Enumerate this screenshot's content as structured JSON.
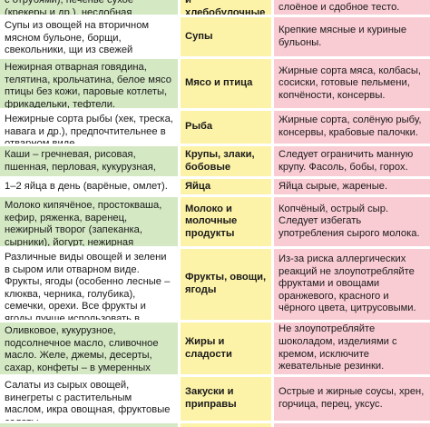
{
  "rows": [
    {
      "allowed": "с отрубями), печенье сухое (крекеры и др.), несдобная выпечка.",
      "category": "и хлебобулочные изделия",
      "restricted": "слоёное и сдобное тесто."
    },
    {
      "allowed": "Супы из овощей на вторичном мясном бульоне, борщи, свекольники, щи из свежей капусты.",
      "category": "Супы",
      "restricted": "Крепкие мясные и куриные бульоны."
    },
    {
      "allowed": "Нежирная отварная говядина, телятина, крольчатина, белое мясо птицы без кожи, паровые котлеты, фрикадельки, тефтели.",
      "category": "Мясо и птица",
      "restricted": "Жирные сорта мяса, колбасы, сосиски, готовые пельмени, копчёности, консервы."
    },
    {
      "allowed": "Нежирные сорта рыбы (хек, треска, навага и др.), предпочтительнее в отварном виде.",
      "category": "Рыба",
      "restricted": "Жирные сорта, солёную рыбу, консервы, крабовые палочки."
    },
    {
      "allowed": "Каши – гречневая, рисовая, пшенная, перловая, кукурузная, пшеничная, овсяная.",
      "category": "Крупы, злаки, бобовые",
      "restricted": "Следует ограничить манную крупу. Фасоль, бобы, горох."
    },
    {
      "allowed": "1–2 яйца в день (варёные, омлет).",
      "category": "Яйца",
      "restricted": "Яйца сырые, жареные."
    },
    {
      "allowed": "Молоко кипячёное, простокваша, кефир, ряженка, варенец, нежирный творог (запеканка, сырники), йогурт, нежирная сметана, сыр.",
      "category": "Молоко и молочные продукты",
      "restricted": "Копчёный, острый сыр. Следует избегать употребления сырого молока."
    },
    {
      "allowed": "Различные виды овощей и зелени в сыром или отварном виде. Фрукты, ягоды (особенно лесные – клюква, черника, голубика), семечки, орехи. Все фрукты и ягоды лучше использовать в натуральном виде.",
      "category": "Фрукты, овощи, ягоды",
      "restricted": "Из-за риска аллергических реакций не злоупотребляйте фруктами и овощами оранжевого, красного и чёрного цвета, цитрусовыми."
    },
    {
      "allowed": "Оливковое, кукурузное, подсолнечное масло, сливочное масло. Желе, джемы, десерты, сахар, конфеты – в умеренных количествах.",
      "category": "Жиры и сладости",
      "restricted": "Не злоупотребляйте шоколадом, изделиями с кремом, исключите жевательные резинки."
    },
    {
      "allowed": "Салаты из сырых овощей, винегреты с растительным маслом, икра овощная, фруктовые салаты.",
      "category": "Закуски и приправы",
      "restricted": "Острые и жирные соусы, хрен, горчица, перец, уксус."
    },
    {
      "allowed": "",
      "category": "",
      "restricted": ""
    }
  ]
}
